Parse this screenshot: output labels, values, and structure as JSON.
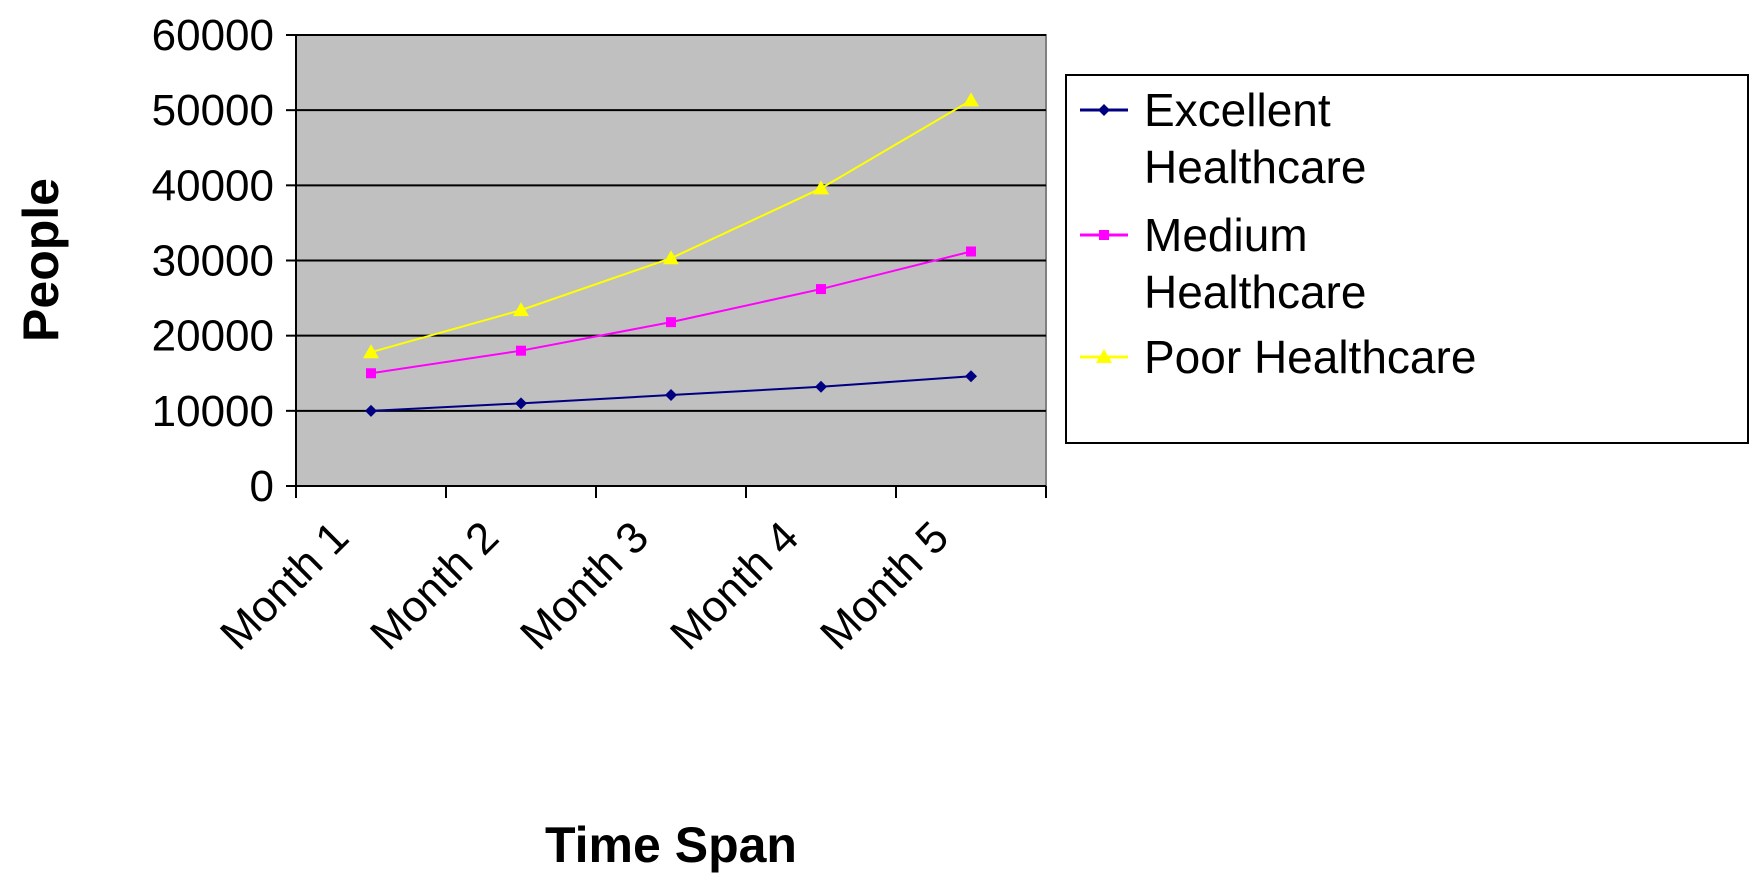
{
  "chart_data": {
    "type": "line",
    "title": "",
    "xlabel": "Time Span",
    "ylabel": "People",
    "categories": [
      "Month 1",
      "Month 2",
      "Month 3",
      "Month 4",
      "Month 5"
    ],
    "ylim": [
      0,
      60000
    ],
    "yticks": [
      "0",
      "10000",
      "20000",
      "30000",
      "40000",
      "50000",
      "60000"
    ],
    "grid": true,
    "plot_background": "#c0c0c0",
    "legend_position": "right",
    "series": [
      {
        "name": "Excellent Healthcare",
        "values": [
          10000,
          11000,
          12100,
          13200,
          14600
        ],
        "color": "#000080",
        "marker": "diamond"
      },
      {
        "name": "Medium Healthcare",
        "values": [
          15000,
          18000,
          21800,
          26200,
          31200
        ],
        "color": "#ff00ff",
        "marker": "square"
      },
      {
        "name": "Poor Healthcare",
        "values": [
          17800,
          23400,
          30300,
          39600,
          51300
        ],
        "color": "#ffff00",
        "marker": "triangle"
      }
    ],
    "legend": [
      {
        "lines": [
          "Excellent",
          "Healthcare"
        ]
      },
      {
        "lines": [
          "Medium",
          "Healthcare"
        ]
      },
      {
        "lines": [
          "Poor Healthcare"
        ]
      }
    ]
  }
}
